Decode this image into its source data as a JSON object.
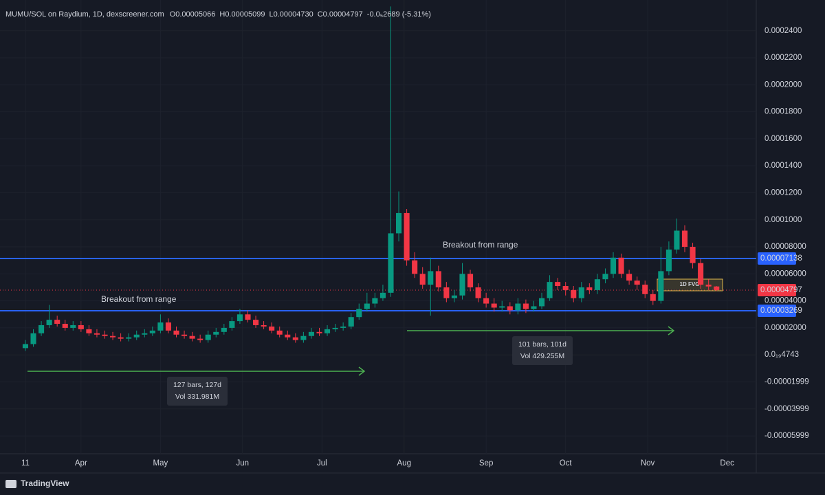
{
  "chart_data": {
    "type": "candlestick",
    "title": "MUMU/SOL on Raydium, 1D, dexscreener.com",
    "readout": [
      {
        "key": "O",
        "text": "0.00005066"
      },
      {
        "key": "H",
        "text": "0.00005099"
      },
      {
        "key": "L",
        "text": "0.00004730"
      },
      {
        "key": "C",
        "text": "0.00004797"
      }
    ],
    "change": "-0.0₅2689 (-5.31%)",
    "up_color": "#089981",
    "down_color": "#f23645",
    "x": [
      0,
      3,
      6,
      9,
      12,
      15,
      18,
      21,
      24,
      27,
      30,
      33,
      36,
      39,
      42,
      45,
      48,
      51,
      54,
      57,
      60,
      63,
      66,
      69,
      72,
      75,
      78,
      81,
      84,
      87,
      90,
      93,
      96,
      99,
      102,
      105,
      108,
      111,
      114,
      117,
      120,
      123,
      126,
      129,
      132,
      135,
      138,
      141,
      144,
      147,
      150,
      153,
      156,
      159,
      162,
      165,
      168,
      171,
      174,
      177,
      180,
      183,
      186,
      189,
      192,
      195,
      198,
      201,
      204,
      207,
      210,
      213,
      216,
      219,
      222,
      225,
      228,
      231,
      234,
      237,
      240,
      243,
      246,
      249,
      252,
      255,
      258,
      261
    ],
    "open": [
      5e-06,
      8e-06,
      1.6e-05,
      2.2e-05,
      2.6e-05,
      2.3e-05,
      2e-05,
      2.2e-05,
      1.9e-05,
      1.6e-05,
      1.5e-05,
      1.4e-05,
      1.3e-05,
      1.2e-05,
      1.3e-05,
      1.5e-05,
      1.6e-05,
      1.8e-05,
      2.4e-05,
      1.8e-05,
      1.5e-05,
      1.4e-05,
      1.2e-05,
      1.1e-05,
      1.5e-05,
      1.7e-05,
      2e-05,
      2.5e-05,
      3e-05,
      2.6e-05,
      2.2e-05,
      2.1e-05,
      1.8e-05,
      1.5e-05,
      1.3e-05,
      1.1e-05,
      1.4e-05,
      1.7e-05,
      1.6e-05,
      1.9e-05,
      2e-05,
      2.1e-05,
      2.8e-05,
      3.4e-05,
      3.8e-05,
      4.2e-05,
      4.6e-05,
      9e-05,
      0.000105,
      7e-05,
      6e-05,
      5.2e-05,
      6.2e-05,
      5e-05,
      4.2e-05,
      4.4e-05,
      6e-05,
      5e-05,
      4.2e-05,
      3.8e-05,
      3.5e-05,
      3.6e-05,
      3.3e-05,
      3.8e-05,
      3.4e-05,
      3.6e-05,
      4.2e-05,
      5.4e-05,
      5.1e-05,
      4.8e-05,
      4.2e-05,
      5e-05,
      4.8e-05,
      5.6e-05,
      6e-05,
      7.2e-05,
      6e-05,
      5.5e-05,
      5.2e-05,
      4.5e-05,
      4e-05,
      6.2e-05,
      7.8e-05,
      9.2e-05,
      8e-05,
      6.8e-05,
      5.2e-05,
      5.066e-05
    ],
    "high": [
      1.1e-05,
      1.9e-05,
      2.5e-05,
      3.7e-05,
      2.9e-05,
      2.6e-05,
      2.5e-05,
      2.5e-05,
      2.2e-05,
      1.9e-05,
      1.8e-05,
      1.7e-05,
      1.6e-05,
      1.6e-05,
      1.8e-05,
      1.9e-05,
      2.1e-05,
      3e-05,
      2.7e-05,
      2.1e-05,
      1.8e-05,
      1.7e-05,
      1.5e-05,
      1.8e-05,
      2e-05,
      2.3e-05,
      2.8e-05,
      3.4e-05,
      3.3e-05,
      2.9e-05,
      2.5e-05,
      2.4e-05,
      2.1e-05,
      1.8e-05,
      1.6e-05,
      1.7e-05,
      2e-05,
      2e-05,
      2.2e-05,
      2.3e-05,
      2.4e-05,
      3.1e-05,
      3.8e-05,
      4.6e-05,
      4.6e-05,
      5.2e-05,
      0.000258,
      0.000121,
      0.000108,
      7.6e-05,
      6.5e-05,
      7.2e-05,
      6.6e-05,
      5.4e-05,
      4.8e-05,
      6.8e-05,
      6.3e-05,
      5.3e-05,
      4.6e-05,
      4.2e-05,
      4e-05,
      3.9e-05,
      4.2e-05,
      4.1e-05,
      4e-05,
      4.6e-05,
      5.9e-05,
      5.7e-05,
      5.4e-05,
      5.1e-05,
      5.4e-05,
      5.3e-05,
      6e-05,
      6.4e-05,
      7.6e-05,
      7.5e-05,
      6.3e-05,
      5.8e-05,
      5.5e-05,
      4.8e-05,
      8e-05,
      8.4e-05,
      0.000101,
      9.6e-05,
      8.3e-05,
      7.1e-05,
      5.6e-05,
      5.099e-05
    ],
    "low": [
      3e-06,
      6e-06,
      1.4e-05,
      2e-05,
      2.1e-05,
      1.8e-05,
      1.8e-05,
      1.7e-05,
      1.4e-05,
      1.3e-05,
      1.2e-05,
      1.1e-05,
      1e-05,
      1e-05,
      1.1e-05,
      1.3e-05,
      1.4e-05,
      1.6e-05,
      1.6e-05,
      1.3e-05,
      1.2e-05,
      1e-05,
      9e-06,
      9e-06,
      1.3e-05,
      1.5e-05,
      1.8e-05,
      2.3e-05,
      2.4e-05,
      2e-05,
      1.9e-05,
      1.6e-05,
      1.3e-05,
      1.1e-05,
      9e-06,
      9e-06,
      1.2e-05,
      1.4e-05,
      1.4e-05,
      1.7e-05,
      1.8e-05,
      1.9e-05,
      2.6e-05,
      3.2e-05,
      3.5e-05,
      4e-05,
      4.3e-05,
      8.4e-05,
      6.6e-05,
      5.7e-05,
      4.9e-05,
      2.9e-05,
      4.7e-05,
      3.9e-05,
      3.9e-05,
      4.1e-05,
      4.7e-05,
      3.9e-05,
      3.5e-05,
      3.2e-05,
      3.2e-05,
      3e-05,
      3e-05,
      3.1e-05,
      3.2e-05,
      3.4e-05,
      4e-05,
      4.8e-05,
      4.4e-05,
      3.9e-05,
      3.9e-05,
      4.5e-05,
      4.5e-05,
      5.3e-05,
      5.7e-05,
      5.7e-05,
      5.2e-05,
      4.8e-05,
      4.2e-05,
      3.7e-05,
      3.8e-05,
      5.9e-05,
      7.5e-05,
      7.6e-05,
      6.4e-05,
      4.9e-05,
      4.8e-05,
      4.73e-05
    ],
    "close": [
      8e-06,
      1.6e-05,
      2.2e-05,
      2.6e-05,
      2.3e-05,
      2e-05,
      2.2e-05,
      1.9e-05,
      1.6e-05,
      1.5e-05,
      1.4e-05,
      1.3e-05,
      1.2e-05,
      1.3e-05,
      1.5e-05,
      1.6e-05,
      1.8e-05,
      2.4e-05,
      1.8e-05,
      1.5e-05,
      1.4e-05,
      1.2e-05,
      1.1e-05,
      1.5e-05,
      1.7e-05,
      2e-05,
      2.5e-05,
      3e-05,
      2.6e-05,
      2.2e-05,
      2.1e-05,
      1.8e-05,
      1.5e-05,
      1.3e-05,
      1.1e-05,
      1.4e-05,
      1.7e-05,
      1.6e-05,
      1.9e-05,
      2e-05,
      2.1e-05,
      2.8e-05,
      3.4e-05,
      3.8e-05,
      4.2e-05,
      4.6e-05,
      9e-05,
      0.000105,
      7e-05,
      6e-05,
      5.2e-05,
      6.2e-05,
      5e-05,
      4.2e-05,
      4.4e-05,
      6e-05,
      5e-05,
      4.2e-05,
      3.8e-05,
      3.5e-05,
      3.6e-05,
      3.3e-05,
      3.8e-05,
      3.4e-05,
      3.6e-05,
      4.2e-05,
      5.4e-05,
      5.1e-05,
      4.8e-05,
      4.2e-05,
      5e-05,
      4.8e-05,
      5.6e-05,
      6e-05,
      7.2e-05,
      6e-05,
      5.5e-05,
      5.2e-05,
      4.5e-05,
      4e-05,
      6.2e-05,
      7.8e-05,
      9.2e-05,
      8e-05,
      6.8e-05,
      5.2e-05,
      5.066e-05,
      4.797e-05
    ],
    "xlim": [
      -7,
      276
    ],
    "xticks": [
      {
        "value": 0,
        "label": "11"
      },
      {
        "value": 21,
        "label": "Apr"
      },
      {
        "value": 51,
        "label": "May"
      },
      {
        "value": 82,
        "label": "Jun"
      },
      {
        "value": 112,
        "label": "Jul"
      },
      {
        "value": 143,
        "label": "Aug"
      },
      {
        "value": 174,
        "label": "Sep"
      },
      {
        "value": 204,
        "label": "Oct"
      },
      {
        "value": 235,
        "label": "Nov"
      },
      {
        "value": 265,
        "label": "Dec"
      }
    ],
    "ylim": [
      -7.32e-05,
      0.0002587
    ],
    "yticks": [
      {
        "value": -6e-05,
        "label": "-0.00005999"
      },
      {
        "value": -4e-05,
        "label": "-0.00003999"
      },
      {
        "value": -2e-05,
        "label": "-0.00001999"
      },
      {
        "value": 0,
        "label": "0.0₁₉4743"
      },
      {
        "value": 2e-05,
        "label": "0.00002000"
      },
      {
        "value": 4e-05,
        "label": "0.00004000"
      },
      {
        "value": 6e-05,
        "label": "0.00006000"
      },
      {
        "value": 8e-05,
        "label": "0.00008000"
      },
      {
        "value": 0.0001,
        "label": "0.0001000"
      },
      {
        "value": 0.00012,
        "label": "0.0001200"
      },
      {
        "value": 0.00014,
        "label": "0.0001400"
      },
      {
        "value": 0.00016,
        "label": "0.0001600"
      },
      {
        "value": 0.00018,
        "label": "0.0001800"
      },
      {
        "value": 0.0002,
        "label": "0.0002000"
      },
      {
        "value": 0.00022,
        "label": "0.0002200"
      },
      {
        "value": 0.00024,
        "label": "0.0002400"
      }
    ],
    "grid": true,
    "hlines": [
      {
        "value": 7.138e-05,
        "label": "0.00007138",
        "color": "#2962ff",
        "style": "solid"
      },
      {
        "value": 3.269e-05,
        "label": "0.00003269",
        "color": "#2962ff",
        "style": "solid"
      },
      {
        "value": 4.797e-05,
        "label": "0.00004797",
        "color": "#f23645",
        "style": "dotted"
      }
    ],
    "annotations": [
      "Breakout from range",
      "Breakout from range",
      "1D FVG"
    ],
    "measurements": [
      {
        "bars": "127 bars, 127d",
        "volume": "Vol 331.981M"
      },
      {
        "bars": "101 bars, 101d",
        "volume": "Vol 429.255M"
      }
    ],
    "brand": "TradingView"
  }
}
